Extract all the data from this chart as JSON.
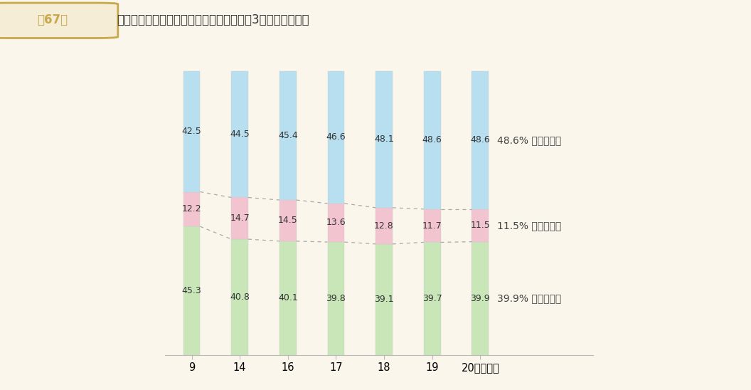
{
  "title": "普通建設事業費の財源構成比の推移（その3　単独事業費）",
  "title_box_label": "第67図",
  "categories": [
    "9",
    "14",
    "16",
    "17",
    "18",
    "19",
    "20（年度）"
  ],
  "chihou_sai": [
    45.3,
    40.8,
    40.1,
    39.8,
    39.1,
    39.7,
    39.9
  ],
  "sono_hoka": [
    12.2,
    14.7,
    14.5,
    13.6,
    12.8,
    11.7,
    11.5
  ],
  "ippan_zaigen": [
    42.5,
    44.5,
    45.4,
    46.6,
    48.1,
    48.6,
    48.6
  ],
  "bar_color_chihou": "#c8e6b8",
  "bar_color_sono": "#f2c4d0",
  "bar_color_ippan": "#b8dff0",
  "background_color": "#faf6eb",
  "title_bg_color": "#ede5c8",
  "title_box_bg": "#c8a84b",
  "label_ippan": "一般財源等",
  "label_sono": "そ　の　他",
  "label_chihou": "地　方　債",
  "bar_width": 0.35,
  "ylim": [
    0,
    110
  ],
  "dashed_line_color": "#aaaaaa"
}
